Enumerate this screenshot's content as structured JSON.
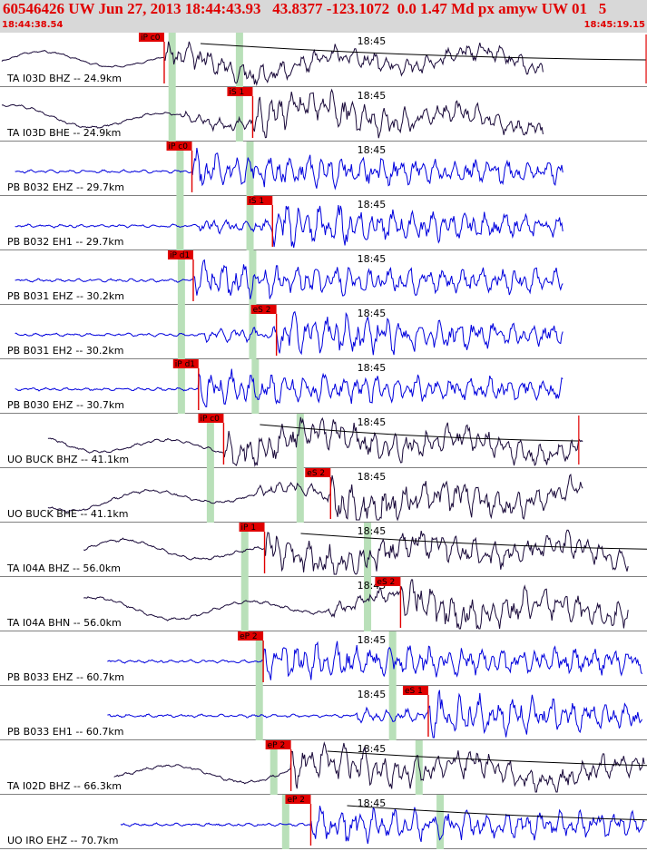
{
  "header": {
    "title": "60546426 UW Jun 27, 2013 18:44:43.93   43.8377 -123.1072  0.0 1.47 Md px amyw UW 01   5",
    "start_time": "18:44:38.54",
    "end_time": "18:45:19.15"
  },
  "colors": {
    "header_text": "#e00000",
    "header_bg": "#d8d8d8",
    "pick_box": "#e00000",
    "pick_line": "#e00000",
    "window": "#b9e0b9",
    "trace_dark": "#1a0a3a",
    "trace_blue": "#0000dd"
  },
  "chart_data": {
    "type": "line",
    "title": "60546426 UW Jun 27, 2013 18:44:43.93   43.8377 -123.1072  0.0 1.47 Md px amyw UW 01   5",
    "time_range": [
      "18:44:38.54",
      "18:45:19.15"
    ],
    "time_marker": "18:45",
    "series": [
      {
        "name": "TA I03D BHZ -- 24.9km",
        "color": "dark",
        "pick": "iP c0",
        "pick_t": 12.3,
        "windows": [
          12.9,
          18.0
        ],
        "start_t": 0.0,
        "end_t": 41.0,
        "amp": 0.55,
        "coda": true,
        "duration_t": 36.5
      },
      {
        "name": "TA I03D BHE -- 24.9km",
        "color": "dark",
        "pick": "iS 1",
        "pick_t": 19.0,
        "windows": [
          12.9,
          18.0
        ],
        "start_t": 0.0,
        "end_t": 41.0,
        "amp": 0.7,
        "coda": false
      },
      {
        "name": "PB B032 EHZ -- 29.7km",
        "color": "blue",
        "pick": "iP c0",
        "pick_t": 14.4,
        "windows": [
          13.5,
          18.8
        ],
        "start_t": 1.0,
        "end_t": 42.5,
        "amp": 0.8,
        "coda": false
      },
      {
        "name": "PB B032 EH1 -- 29.7km",
        "color": "blue",
        "pick": "iS 1",
        "pick_t": 20.5,
        "windows": [
          13.5,
          18.8
        ],
        "start_t": 1.0,
        "end_t": 42.5,
        "amp": 0.8,
        "coda": false
      },
      {
        "name": "PB B031 EHZ -- 30.2km",
        "color": "blue",
        "pick": "iP d1",
        "pick_t": 14.5,
        "windows": [
          13.6,
          19.0
        ],
        "start_t": 1.0,
        "end_t": 42.5,
        "amp": 0.8,
        "coda": false
      },
      {
        "name": "PB B031 EH2 -- 30.2km",
        "color": "blue",
        "pick": "eS 2",
        "pick_t": 20.8,
        "windows": [
          13.6,
          19.0
        ],
        "start_t": 1.0,
        "end_t": 42.5,
        "amp": 0.8,
        "coda": false
      },
      {
        "name": "PB B030 EHZ -- 30.7km",
        "color": "blue",
        "pick": "iP d1",
        "pick_t": 14.9,
        "windows": [
          13.6,
          19.2
        ],
        "start_t": 1.0,
        "end_t": 42.5,
        "amp": 0.75,
        "coda": false
      },
      {
        "name": "UO BUCK BHZ -- 41.1km",
        "color": "dark",
        "pick": "iP c0",
        "pick_t": 16.8,
        "windows": [
          15.8,
          22.6
        ],
        "start_t": 3.5,
        "end_t": 44.0,
        "amp": 0.8,
        "coda": true,
        "duration_t": 26.9
      },
      {
        "name": "UO BUCK BHE -- 41.1km",
        "color": "dark",
        "pick": "eS 2",
        "pick_t": 24.9,
        "windows": [
          15.8,
          22.6
        ],
        "start_t": 3.5,
        "end_t": 44.0,
        "amp": 0.8,
        "coda": false
      },
      {
        "name": "TA I04A BHZ -- 56.0km",
        "color": "dark",
        "pick": "iP 1",
        "pick_t": 19.9,
        "windows": [
          18.4,
          27.7
        ],
        "start_t": 6.2,
        "end_t": 47.5,
        "amp": 0.8,
        "coda": true,
        "duration_t": 32.8
      },
      {
        "name": "TA I04A BHN -- 56.0km",
        "color": "dark",
        "pick": "eS 2",
        "pick_t": 30.2,
        "windows": [
          18.4,
          27.7
        ],
        "start_t": 6.2,
        "end_t": 47.5,
        "amp": 0.8,
        "coda": false
      },
      {
        "name": "PB B033 EHZ -- 60.7km",
        "color": "blue",
        "pick": "eP 2",
        "pick_t": 19.8,
        "windows": [
          19.5,
          29.6
        ],
        "start_t": 8.0,
        "end_t": 48.5,
        "amp": 0.8,
        "coda": false
      },
      {
        "name": "PB B033 EH1 -- 60.7km",
        "color": "blue",
        "pick": "eS 1",
        "pick_t": 32.3,
        "windows": [
          19.5,
          29.6
        ],
        "start_t": 8.0,
        "end_t": 48.5,
        "amp": 0.8,
        "coda": false
      },
      {
        "name": "TA I02D BHZ -- 66.3km",
        "color": "dark",
        "pick": "eP 2",
        "pick_t": 21.9,
        "windows": [
          20.6,
          31.6
        ],
        "start_t": 8.5,
        "end_t": 49.5,
        "amp": 0.8,
        "coda": true,
        "duration_t": 36.7
      },
      {
        "name": "UO IRO EHZ -- 70.7km",
        "color": "blue",
        "pick": "eP 2",
        "pick_t": 23.4,
        "windows": [
          21.5,
          33.2
        ],
        "start_t": 9.0,
        "end_t": 50.5,
        "amp": 0.8,
        "coda": true,
        "duration_t": 34.3
      }
    ]
  }
}
